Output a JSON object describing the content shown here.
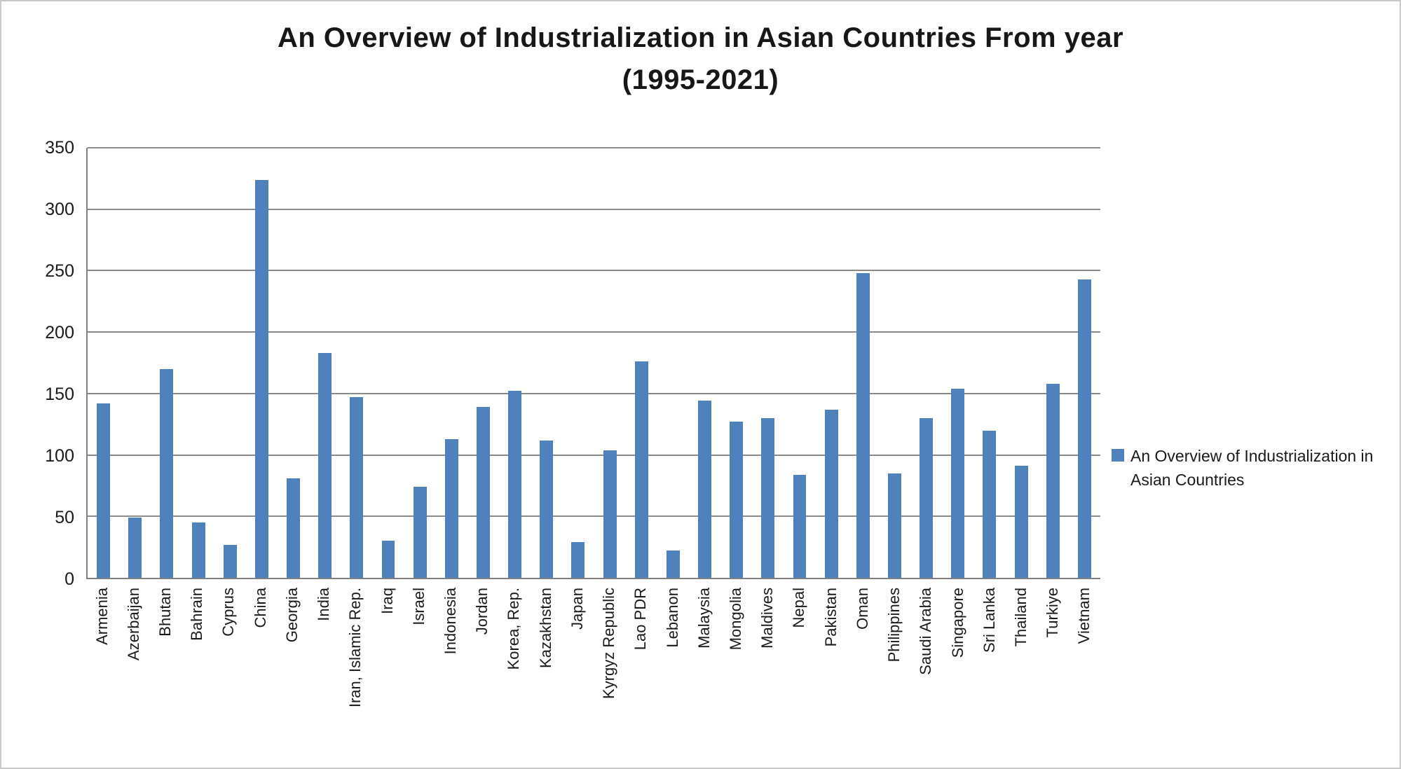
{
  "page": {
    "background": "#ffffff",
    "border_color": "#c9c9c9"
  },
  "chart_data": {
    "type": "bar",
    "title": "An Overview of Industrialization in Asian Countries From year (1995-2021)",
    "title_lines": [
      "An Overview of Industrialization in Asian Countries From year",
      "(1995-2021)"
    ],
    "legend": "An Overview of Industrialization in Asian Countries",
    "legend_position": "right",
    "bar_color": "#4F81BD",
    "gridline_color": "#8b8b8b",
    "axis_color": "#808080",
    "grid": true,
    "ylim": [
      0,
      350
    ],
    "yticks": [
      0,
      50,
      100,
      150,
      200,
      250,
      300,
      350
    ],
    "categories": [
      "Armenia",
      "Azerbaijan",
      "Bhutan",
      "Bahrain",
      "Cyprus",
      "China",
      "Georgia",
      "India",
      "Iran, Islamic Rep.",
      "Iraq",
      "Israel",
      "Indonesia",
      "Jordan",
      "Korea, Rep.",
      "Kazakhstan",
      "Japan",
      "Kyrgyz Republic",
      "Lao PDR",
      "Lebanon",
      "Malaysia",
      "Mongolia",
      "Maldives",
      "Nepal",
      "Pakistan",
      "Oman",
      "Philippines",
      "Saudi Arabia",
      "Singapore",
      "Sri Lanka",
      "Thailand",
      "Turkiye",
      "Vietnam"
    ],
    "values": [
      142,
      49,
      170,
      45,
      27,
      324,
      81,
      183,
      147,
      30,
      74,
      113,
      139,
      152,
      112,
      29,
      104,
      176,
      22,
      144,
      127,
      130,
      84,
      137,
      248,
      85,
      130,
      154,
      120,
      91,
      158,
      243
    ]
  }
}
